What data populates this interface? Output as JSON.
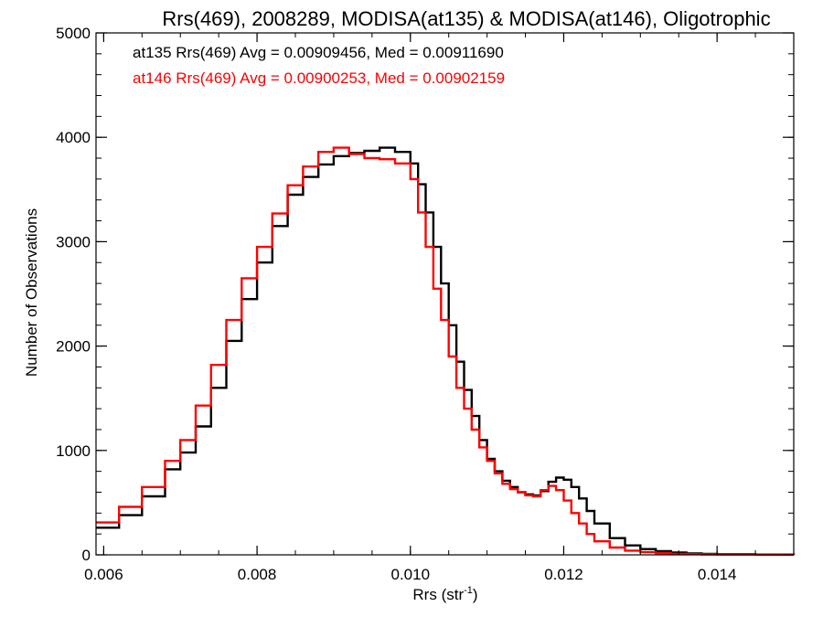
{
  "chart_data": {
    "type": "line",
    "title": "Rrs(469), 2008289, MODISA(at135) & MODISA(at146), Oligotrophic",
    "xlabel": "Rrs (str",
    "xlabel_sup": "-1",
    "xlabel_close": ")",
    "ylabel": "Number of Observations",
    "xlim": [
      0.0059,
      0.015
    ],
    "ylim": [
      0,
      5000
    ],
    "xticks": [
      0.006,
      0.008,
      0.01,
      0.012,
      0.014
    ],
    "xtick_labels": [
      "0.006",
      "0.008",
      "0.010",
      "0.012",
      "0.014"
    ],
    "yticks": [
      0,
      1000,
      2000,
      3000,
      4000,
      5000
    ],
    "ytick_labels": [
      "0",
      "1000",
      "2000",
      "3000",
      "4000",
      "5000"
    ],
    "grid": false,
    "legend_position": "top-left",
    "annotations": [
      {
        "text": "at135 Rrs(469) Avg = 0.00909456, Med = 0.00911690",
        "color": "#000000"
      },
      {
        "text": "at146 Rrs(469) Avg = 0.00900253, Med = 0.00902159",
        "color": "#ff0000"
      }
    ],
    "series": [
      {
        "color": "#000000",
        "x": [
          0.0059,
          0.0062,
          0.0065,
          0.0068,
          0.007,
          0.0072,
          0.0074,
          0.0076,
          0.0078,
          0.008,
          0.0082,
          0.0084,
          0.0086,
          0.0088,
          0.009,
          0.0092,
          0.0094,
          0.0096,
          0.0098,
          0.01,
          0.0101,
          0.0102,
          0.0103,
          0.0104,
          0.0105,
          0.0106,
          0.0107,
          0.0108,
          0.0109,
          0.011,
          0.0111,
          0.0112,
          0.0113,
          0.0114,
          0.0115,
          0.0116,
          0.0117,
          0.0118,
          0.0119,
          0.012,
          0.0121,
          0.0122,
          0.0123,
          0.0124,
          0.0126,
          0.0128,
          0.013,
          0.0132,
          0.0134,
          0.0136,
          0.0138,
          0.014,
          0.0145,
          0.015
        ],
        "y": [
          260,
          380,
          560,
          820,
          980,
          1230,
          1600,
          2050,
          2450,
          2800,
          3150,
          3450,
          3620,
          3740,
          3820,
          3850,
          3870,
          3900,
          3860,
          3750,
          3550,
          3280,
          2950,
          2600,
          2200,
          1850,
          1580,
          1330,
          1100,
          920,
          800,
          710,
          650,
          600,
          580,
          570,
          610,
          700,
          740,
          720,
          650,
          540,
          420,
          300,
          160,
          90,
          55,
          35,
          22,
          14,
          9,
          6,
          3,
          0
        ]
      },
      {
        "color": "#ff0000",
        "x": [
          0.0059,
          0.0062,
          0.0065,
          0.0068,
          0.007,
          0.0072,
          0.0074,
          0.0076,
          0.0078,
          0.008,
          0.0082,
          0.0084,
          0.0086,
          0.0088,
          0.009,
          0.0092,
          0.0094,
          0.0096,
          0.0098,
          0.01,
          0.0101,
          0.0102,
          0.0103,
          0.0104,
          0.0105,
          0.0106,
          0.0107,
          0.0108,
          0.0109,
          0.011,
          0.0111,
          0.0112,
          0.0113,
          0.0114,
          0.0115,
          0.0116,
          0.0117,
          0.0118,
          0.0119,
          0.012,
          0.0121,
          0.0122,
          0.0123,
          0.0124,
          0.0126,
          0.0128,
          0.013,
          0.0132,
          0.0134,
          0.0136,
          0.0138,
          0.014,
          0.0145,
          0.015
        ],
        "y": [
          310,
          460,
          650,
          900,
          1100,
          1430,
          1820,
          2250,
          2650,
          2950,
          3270,
          3540,
          3720,
          3860,
          3900,
          3840,
          3800,
          3790,
          3750,
          3600,
          3280,
          2950,
          2550,
          2250,
          1900,
          1600,
          1400,
          1200,
          1030,
          900,
          780,
          680,
          630,
          600,
          570,
          560,
          620,
          660,
          620,
          520,
          400,
          300,
          200,
          130,
          70,
          40,
          25,
          16,
          10,
          6,
          4,
          3,
          1,
          0
        ]
      }
    ]
  }
}
